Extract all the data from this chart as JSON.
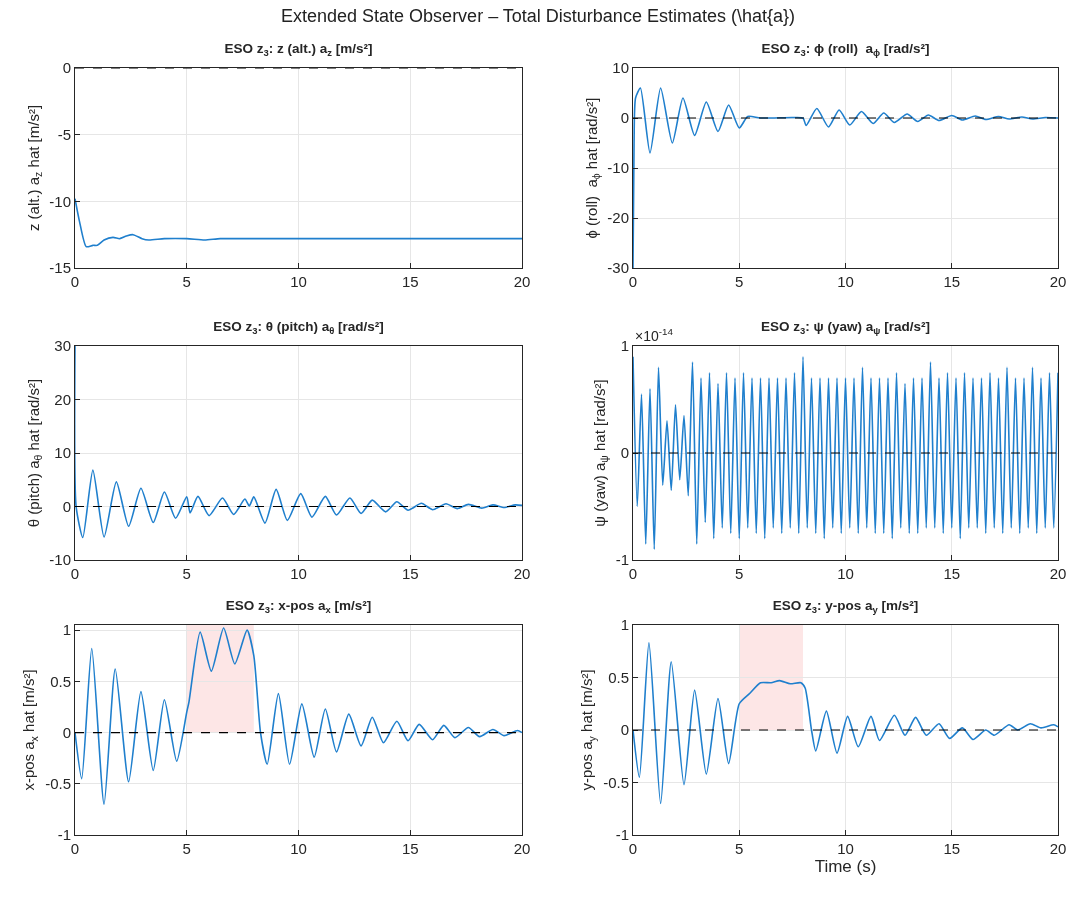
{
  "chart_data": [
    {
      "type": "line",
      "title": "ESO z$_{3}$: z (alt.) a$_{z}$ [m/s²]",
      "ylabel": "z (alt.) a$_{z}$ hat [m/s²]",
      "annotations": [
        "Extended State Observer – Total Disturbance Estimates (\\hat{a})"
      ],
      "xlim": [
        0,
        20
      ],
      "xticks": [
        0,
        5,
        10,
        15,
        20
      ],
      "ylim": [
        -15,
        0
      ],
      "yticks": [
        -15,
        -10,
        -5,
        0
      ],
      "grid": true,
      "line_style": "solid",
      "ref_lines": [
        {
          "axis": "y",
          "value": 0,
          "color": "#000000",
          "line_style": "dashed"
        }
      ],
      "series": [
        {
          "color": "#1f7fcd",
          "x": [
            0,
            0.2,
            0.5,
            0.8,
            1.0,
            1.3,
            1.7,
            2.0,
            2.3,
            2.6,
            3.0,
            3.3,
            4.0,
            5.0,
            5.8,
            6.5,
            8.0,
            10,
            20
          ],
          "values": [
            -9.8,
            -11.5,
            -13.4,
            -13.3,
            -13.3,
            -12.9,
            -12.7,
            -12.8,
            -12.6,
            -12.5,
            -12.8,
            -12.9,
            -12.8,
            -12.8,
            -12.9,
            -12.8,
            -12.8,
            -12.8,
            -12.8
          ]
        }
      ]
    },
    {
      "type": "line",
      "title": "ESO z$_{3}$: ϕ (roll)  a$_{ϕ}$ [rad/s²]",
      "ylabel": "ϕ (roll)  a$_{ϕ}$ hat [rad/s²]",
      "xlim": [
        0,
        20
      ],
      "xticks": [
        0,
        5,
        10,
        15,
        20
      ],
      "ylim": [
        -30,
        10
      ],
      "yticks": [
        -30,
        -20,
        -10,
        0,
        10
      ],
      "grid": true,
      "line_style": "solid",
      "ref_lines": [
        {
          "axis": "y",
          "value": 0,
          "color": "#000000",
          "line_style": "dashed"
        }
      ],
      "series": [
        {
          "color": "#1f7fcd",
          "x": [
            0,
            0.05,
            0.12,
            0.35,
            0.8,
            1.3,
            1.85,
            2.35,
            2.9,
            3.45,
            4.0,
            4.5,
            5.0,
            5.4,
            6.0,
            7.5,
            8.0,
            8.15,
            8.65,
            9.2,
            9.7,
            10.2,
            10.75,
            11.3,
            11.8,
            12.3,
            12.9,
            13.4,
            13.9,
            14.4,
            15.0,
            15.5,
            16.1,
            16.6,
            17.2,
            17.7,
            18.3,
            18.8,
            19.4,
            20
          ],
          "values": [
            -30,
            -5,
            4,
            6,
            -7,
            6,
            -5,
            4,
            -3.5,
            3.2,
            -2.7,
            2.6,
            -2,
            0.3,
            0,
            0.1,
            0,
            -1.5,
            1.9,
            -1.8,
            1.6,
            -1.4,
            1.3,
            -1.1,
            1.0,
            -0.9,
            0.8,
            -0.7,
            0.6,
            -0.5,
            0.5,
            -0.4,
            0.4,
            -0.3,
            0.3,
            -0.2,
            0.2,
            -0.2,
            0.1,
            0
          ]
        }
      ]
    },
    {
      "type": "line",
      "title": "ESO z$_{3}$: θ (pitch) a$_{θ}$ [rad/s²]",
      "ylabel": "θ (pitch) a$_{θ}$ hat [rad/s²]",
      "xlim": [
        0,
        20
      ],
      "xticks": [
        0,
        5,
        10,
        15,
        20
      ],
      "ylim": [
        -10,
        30
      ],
      "yticks": [
        -10,
        0,
        10,
        20,
        30
      ],
      "grid": true,
      "line_style": "solid",
      "ref_lines": [
        {
          "axis": "y",
          "value": 0,
          "color": "#000000",
          "line_style": "dashed"
        }
      ],
      "series": [
        {
          "color": "#1f7fcd",
          "x": [
            0,
            0.05,
            0.35,
            0.8,
            1.3,
            1.85,
            2.4,
            2.95,
            3.5,
            4.0,
            4.5,
            5.0,
            5.15,
            5.5,
            6.0,
            6.6,
            7.1,
            7.6,
            7.8,
            8.0,
            8.5,
            9.0,
            9.5,
            10.1,
            10.6,
            11.2,
            11.7,
            12.3,
            12.8,
            13.3,
            13.9,
            14.4,
            14.9,
            15.5,
            16.0,
            16.6,
            17.1,
            17.6,
            18.2,
            18.7,
            19.2,
            19.7,
            20
          ],
          "values": [
            30,
            0,
            -5.8,
            6.8,
            -5.7,
            4.6,
            -3.7,
            3.4,
            -3,
            2.7,
            -2.2,
            1.8,
            -1.2,
            1.9,
            -1.7,
            1.6,
            -1.5,
            1.4,
            0.1,
            1.8,
            -3.1,
            3.2,
            -2.6,
            2.4,
            -2,
            1.9,
            -1.6,
            1.6,
            -1.3,
            1.2,
            -1.0,
            0.9,
            -0.7,
            0.6,
            -0.6,
            0.5,
            -0.4,
            0.4,
            -0.3,
            0.3,
            -0.2,
            0.3,
            0.2
          ]
        }
      ]
    },
    {
      "type": "line",
      "title": "ESO z$_{3}$: ψ (yaw) a$_{ψ}$ [rad/s²]",
      "ylabel": "ψ (yaw) a$_{ψ}$ hat [rad/s²]",
      "annotations": [
        "×10$^{-14}$"
      ],
      "xlim": [
        0,
        20
      ],
      "xticks": [
        0,
        5,
        10,
        15,
        20
      ],
      "ylim": [
        -1,
        1
      ],
      "yticks": [
        -1,
        0,
        1
      ],
      "grid": true,
      "line_style": "solid",
      "ref_lines": [
        {
          "axis": "y",
          "value": 0,
          "color": "#000000",
          "line_style": "dashed"
        }
      ],
      "series": [
        {
          "color": "#1f7fcd",
          "x": [
            0,
            0.2,
            0.4,
            0.6,
            0.8,
            1.0,
            1.2,
            1.4,
            1.6,
            1.8,
            2.0,
            2.2,
            2.4,
            2.6,
            2.8,
            3.0,
            3.2,
            3.4,
            3.6,
            3.8,
            4.0,
            4.2,
            4.4,
            4.6,
            4.8,
            5.0,
            5.2,
            5.4,
            5.6,
            5.8,
            6.0,
            6.2,
            6.4,
            6.6,
            6.8,
            7.0,
            7.2,
            7.4,
            7.6,
            7.8,
            8.0,
            8.2,
            8.4,
            8.6,
            8.8,
            9.0,
            9.2,
            9.4,
            9.6,
            9.8,
            10.0,
            10.2,
            10.4,
            10.6,
            10.8,
            11.0,
            11.2,
            11.4,
            11.6,
            11.8,
            12.0,
            12.2,
            12.4,
            12.6,
            12.8,
            13.0,
            13.2,
            13.4,
            13.6,
            13.8,
            14.0,
            14.2,
            14.4,
            14.6,
            14.8,
            15.0,
            15.2,
            15.4,
            15.6,
            15.8,
            16.0,
            16.2,
            16.4,
            16.6,
            16.8,
            17.0,
            17.2,
            17.4,
            17.6,
            17.8,
            18.0,
            18.2,
            18.4,
            18.6,
            18.8,
            19.0,
            19.2,
            19.4,
            19.6,
            19.8,
            20.0
          ],
          "values": [
            0.9,
            -0.5,
            0.55,
            -0.85,
            0.6,
            -0.9,
            0.8,
            -0.3,
            0.3,
            -0.35,
            0.45,
            -0.25,
            0.35,
            -0.4,
            0.85,
            -0.85,
            0.7,
            -0.65,
            0.75,
            -0.8,
            0.65,
            -0.7,
            0.75,
            -0.75,
            0.7,
            -0.8,
            0.75,
            -0.7,
            0.7,
            -0.75,
            0.7,
            -0.8,
            0.7,
            -0.7,
            0.7,
            -0.75,
            0.7,
            -0.7,
            0.75,
            -0.75,
            0.9,
            -0.7,
            0.7,
            -0.75,
            0.7,
            -0.8,
            0.7,
            -0.7,
            0.7,
            -0.75,
            0.7,
            -0.7,
            0.7,
            -0.75,
            0.8,
            -0.7,
            0.7,
            -0.75,
            0.7,
            -0.75,
            0.7,
            -0.8,
            0.75,
            -0.7,
            0.65,
            -0.75,
            0.7,
            -0.75,
            0.7,
            -0.7,
            0.85,
            -0.7,
            0.7,
            -0.75,
            0.75,
            -0.7,
            0.7,
            -0.8,
            0.75,
            -0.7,
            0.7,
            -0.7,
            0.7,
            -0.75,
            0.75,
            -0.7,
            0.7,
            -0.75,
            0.8,
            -0.7,
            0.7,
            -0.75,
            0.7,
            -0.7,
            0.8,
            -0.75,
            0.7,
            -0.7,
            0.75,
            -0.7,
            0.75
          ]
        }
      ]
    },
    {
      "type": "line",
      "title": "ESO z$_{3}$: x-pos a$_{x}$ [m/s²]",
      "ylabel": "x-pos a$_{x}$ hat [m/s²]",
      "xlim": [
        0,
        20
      ],
      "xticks": [
        0,
        5,
        10,
        15,
        20
      ],
      "ylim": [
        -1,
        1.05
      ],
      "yticks": [
        -1,
        -0.5,
        0,
        0.5,
        1
      ],
      "grid": true,
      "line_style": "solid",
      "ref_lines": [
        {
          "axis": "y",
          "value": 0,
          "color": "#000000",
          "line_style": "dashed"
        }
      ],
      "bands": [
        {
          "axis": "x",
          "from": 5,
          "to": 8,
          "color": "#fde6e6"
        }
      ],
      "series": [
        {
          "color": "#1f7fcd",
          "x": [
            0,
            0.3,
            0.75,
            1.3,
            1.8,
            2.4,
            2.95,
            3.5,
            4.0,
            4.55,
            5.0,
            5.1,
            5.6,
            6.1,
            6.65,
            7.15,
            7.7,
            8.0,
            8.3,
            8.6,
            9.1,
            9.6,
            10.15,
            10.7,
            11.2,
            11.7,
            12.25,
            12.8,
            13.3,
            13.8,
            14.4,
            14.9,
            15.4,
            16.0,
            16.5,
            17.0,
            17.6,
            18.1,
            18.7,
            19.2,
            19.8,
            20
          ],
          "values": [
            0,
            -0.45,
            0.82,
            -0.7,
            0.62,
            -0.48,
            0.4,
            -0.37,
            0.32,
            -0.28,
            0.2,
            0.3,
            0.98,
            0.6,
            1.02,
            0.67,
            1.0,
            0.75,
            0,
            -0.31,
            0.38,
            -0.31,
            0.28,
            -0.24,
            0.23,
            -0.19,
            0.18,
            -0.13,
            0.15,
            -0.1,
            0.11,
            -0.08,
            0.08,
            -0.07,
            0.07,
            -0.05,
            0.05,
            -0.04,
            0.03,
            -0.03,
            0.02,
            0
          ]
        }
      ]
    },
    {
      "type": "line",
      "title": "ESO z$_{3}$: y-pos a$_{y}$ [m/s²]",
      "xlabel": "Time (s)",
      "ylabel": "y-pos a$_{y}$ hat [m/s²]",
      "xlim": [
        0,
        20
      ],
      "xticks": [
        0,
        5,
        10,
        15,
        20
      ],
      "ylim": [
        -1,
        1
      ],
      "yticks": [
        -1,
        -0.5,
        0,
        0.5,
        1
      ],
      "grid": true,
      "line_style": "solid",
      "ref_lines": [
        {
          "axis": "y",
          "value": 0,
          "color": "#000000",
          "line_style": "dashed"
        }
      ],
      "bands": [
        {
          "axis": "x",
          "from": 5,
          "to": 8,
          "color": "#fde6e6"
        }
      ],
      "series": [
        {
          "color": "#1f7fcd",
          "x": [
            0,
            0.3,
            0.75,
            1.3,
            1.8,
            2.4,
            2.9,
            3.45,
            4.0,
            4.5,
            5.0,
            5.5,
            6.0,
            6.5,
            6.9,
            7.4,
            7.9,
            8.1,
            8.4,
            8.6,
            9.1,
            9.6,
            10.1,
            10.6,
            11.2,
            11.6,
            12.3,
            12.8,
            13.3,
            13.8,
            14.4,
            14.9,
            15.5,
            16.0,
            16.6,
            17.0,
            17.7,
            18.1,
            18.7,
            19.2,
            19.8,
            20
          ],
          "values": [
            0,
            -0.45,
            0.83,
            -0.7,
            0.65,
            -0.52,
            0.38,
            -0.42,
            0.3,
            -0.32,
            0.25,
            0.35,
            0.45,
            0.45,
            0.47,
            0.44,
            0.45,
            0.4,
            0,
            -0.2,
            0.18,
            -0.22,
            0.13,
            -0.16,
            0.13,
            -0.1,
            0.14,
            -0.05,
            0.12,
            -0.05,
            0.06,
            -0.08,
            0.02,
            -0.09,
            0,
            -0.05,
            0.05,
            0,
            0.06,
            0.02,
            0.05,
            0.03
          ]
        }
      ]
    }
  ]
}
